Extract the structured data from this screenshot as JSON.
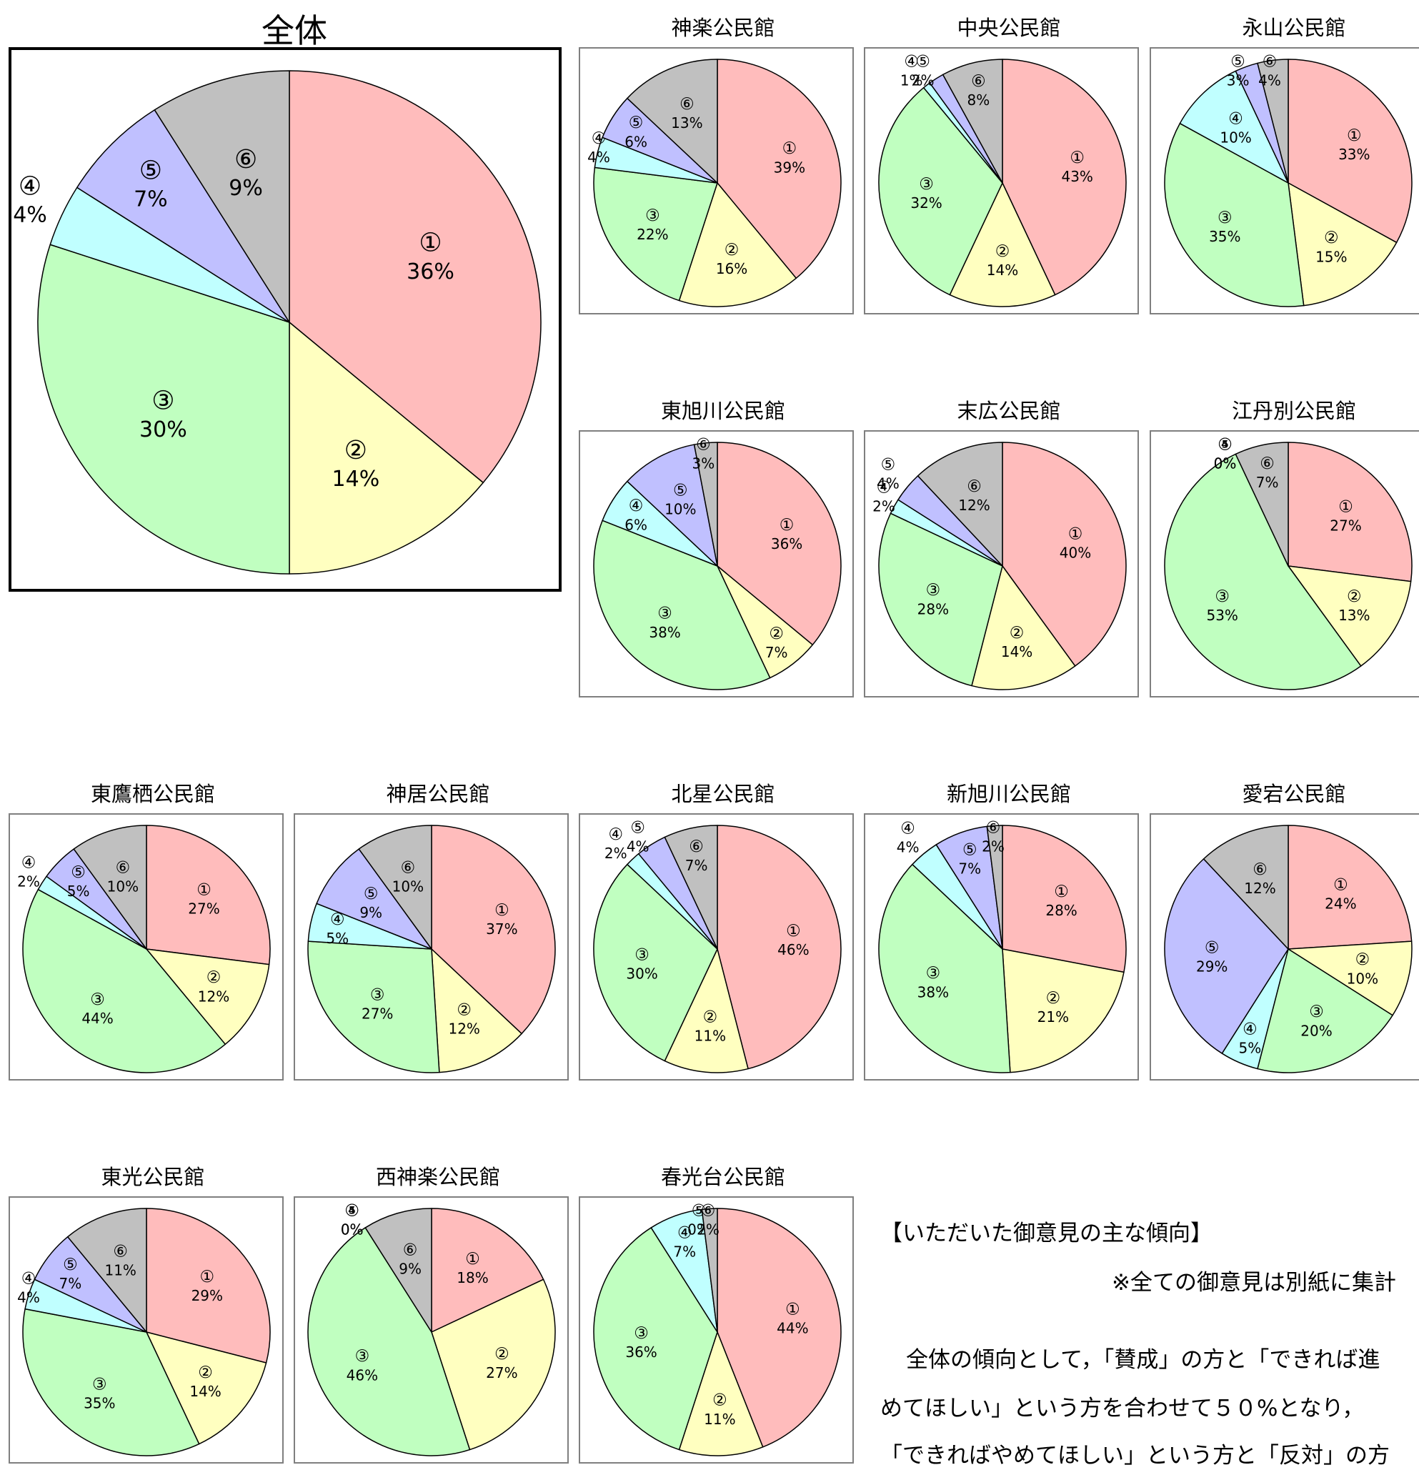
{
  "colors": {
    "1": "#ffbcbc",
    "2": "#ffffc0",
    "3": "#c0ffc0",
    "4": "#c0ffff",
    "5": "#c0c0ff",
    "6": "#c0c0c0",
    "outline": "#000000"
  },
  "markers": [
    "①",
    "②",
    "③",
    "④",
    "⑤",
    "⑥"
  ],
  "chart_data": [
    {
      "type": "pie",
      "title": "全体",
      "categories": [
        "①",
        "②",
        "③",
        "④",
        "⑤",
        "⑥"
      ],
      "values": [
        36,
        14,
        30,
        4,
        7,
        9
      ]
    },
    {
      "type": "pie",
      "title": "神楽公民館",
      "categories": [
        "①",
        "②",
        "③",
        "④",
        "⑤",
        "⑥"
      ],
      "values": [
        39,
        16,
        22,
        4,
        6,
        13
      ]
    },
    {
      "type": "pie",
      "title": "中央公民館",
      "categories": [
        "①",
        "②",
        "③",
        "④",
        "⑤",
        "⑥"
      ],
      "values": [
        43,
        14,
        32,
        1,
        2,
        8
      ]
    },
    {
      "type": "pie",
      "title": "永山公民館",
      "categories": [
        "①",
        "②",
        "③",
        "④",
        "⑤",
        "⑥"
      ],
      "values": [
        33,
        15,
        35,
        10,
        3,
        4
      ]
    },
    {
      "type": "pie",
      "title": "東旭川公民館",
      "categories": [
        "①",
        "②",
        "③",
        "④",
        "⑤",
        "⑥"
      ],
      "values": [
        36,
        7,
        38,
        6,
        10,
        3
      ]
    },
    {
      "type": "pie",
      "title": "末広公民館",
      "categories": [
        "①",
        "②",
        "③",
        "④",
        "⑤",
        "⑥"
      ],
      "values": [
        40,
        14,
        28,
        2,
        4,
        12
      ]
    },
    {
      "type": "pie",
      "title": "江丹別公民館",
      "categories": [
        "①",
        "②",
        "③",
        "④",
        "⑤",
        "⑥"
      ],
      "values": [
        27,
        13,
        53,
        0,
        0,
        7
      ]
    },
    {
      "type": "pie",
      "title": "東鷹栖公民館",
      "categories": [
        "①",
        "②",
        "③",
        "④",
        "⑤",
        "⑥"
      ],
      "values": [
        27,
        12,
        44,
        2,
        5,
        10
      ]
    },
    {
      "type": "pie",
      "title": "神居公民館",
      "categories": [
        "①",
        "②",
        "③",
        "④",
        "⑤",
        "⑥"
      ],
      "values": [
        37,
        12,
        27,
        5,
        9,
        10
      ]
    },
    {
      "type": "pie",
      "title": "北星公民館",
      "categories": [
        "①",
        "②",
        "③",
        "④",
        "⑤",
        "⑥"
      ],
      "values": [
        46,
        11,
        30,
        2,
        4,
        7
      ]
    },
    {
      "type": "pie",
      "title": "新旭川公民館",
      "categories": [
        "①",
        "②",
        "③",
        "④",
        "⑤",
        "⑥"
      ],
      "values": [
        28,
        21,
        38,
        4,
        7,
        2
      ]
    },
    {
      "type": "pie",
      "title": "愛宕公民館",
      "categories": [
        "①",
        "②",
        "③",
        "④",
        "⑤",
        "⑥"
      ],
      "values": [
        24,
        10,
        20,
        5,
        29,
        12
      ]
    },
    {
      "type": "pie",
      "title": "東光公民館",
      "categories": [
        "①",
        "②",
        "③",
        "④",
        "⑤",
        "⑥"
      ],
      "values": [
        29,
        14,
        35,
        4,
        7,
        11
      ]
    },
    {
      "type": "pie",
      "title": "西神楽公民館",
      "categories": [
        "①",
        "②",
        "③",
        "④",
        "⑤",
        "⑥"
      ],
      "values": [
        18,
        27,
        46,
        0,
        0,
        9
      ]
    },
    {
      "type": "pie",
      "title": "春光台公民館",
      "categories": [
        "①",
        "②",
        "③",
        "④",
        "⑤",
        "⑥"
      ],
      "values": [
        44,
        11,
        36,
        7,
        0,
        2
      ]
    }
  ],
  "notes": {
    "heading": "【いただいた御意見の主な傾向】",
    "footnote": "※全ての御意見は別紙に集計",
    "line1": "全体の傾向として，「賛成」の方と「できれば進",
    "line2": "めてほしい」という方を合わせて５０%となり，",
    "line3": "「できればやめてほしい」という方と「反対」の方"
  }
}
